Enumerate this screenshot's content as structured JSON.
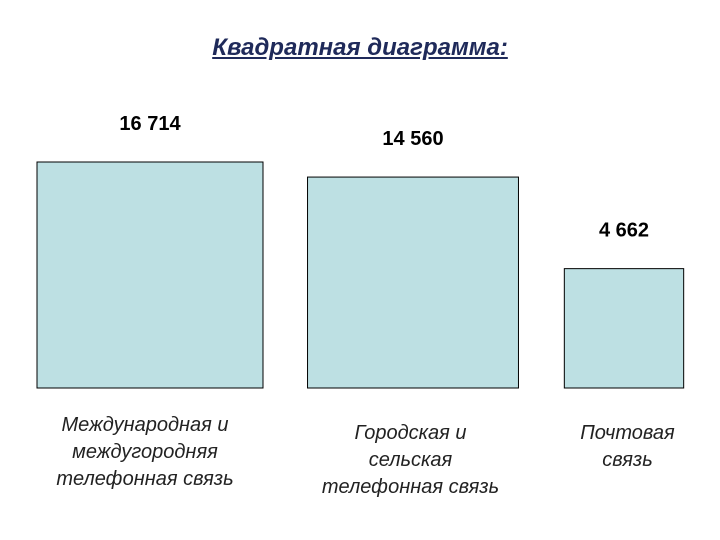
{
  "chart_data": {
    "type": "bar",
    "title": "Квадратная диаграмма:",
    "categories": [
      "Международная и междугородняя телефонная связь",
      "Городская и сельская телефонная связь",
      "Почтовая связь"
    ],
    "category_lines": [
      [
        "Международная и",
        "междугородняя",
        "телефонная связь"
      ],
      [
        "Городская и",
        "сельская",
        "телефонная связь"
      ],
      [
        "Почтовая",
        "связь"
      ]
    ],
    "values": [
      16714,
      14560,
      4662
    ],
    "value_labels": [
      "16 714",
      "14 560",
      "4 662"
    ],
    "encoding": "square area",
    "square_fill": "#bde0e3",
    "square_stroke": "#000000",
    "grid": false,
    "legend": "none"
  }
}
